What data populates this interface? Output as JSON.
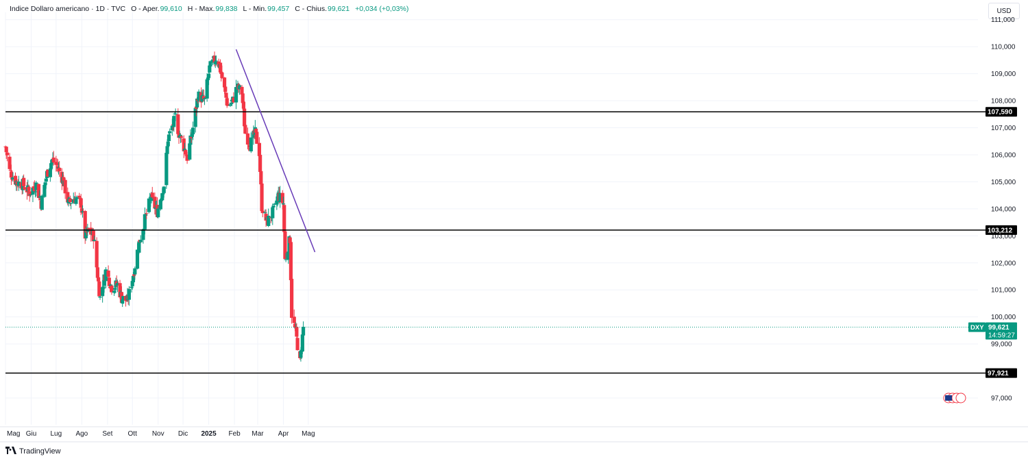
{
  "legend": {
    "title": "Indice Dollaro americano",
    "timeframe": "1D",
    "source": "TVC",
    "open_label": "O",
    "open_text": "Aper.",
    "open_value": "99,610",
    "high_label": "H",
    "high_text": "Max.",
    "high_value": "99,838",
    "low_label": "L",
    "low_text": "Min.",
    "low_value": "99,457",
    "close_label": "C",
    "close_text": "Chius.",
    "close_value": "99,621",
    "change": "+0,034 (+0,03%)"
  },
  "currency_button": "USD",
  "brand": {
    "name": "TradingView",
    "icon": "tradingview-logo-icon"
  },
  "colors": {
    "up": "#089981",
    "down": "#f23645",
    "trendline": "#673ab7",
    "level_line": "#000000",
    "grid": "#f0f3fa",
    "price_line": "#089981"
  },
  "chart_data": {
    "type": "candlestick",
    "symbol": "DXY",
    "last_price": "99,621",
    "countdown": "14:59:27",
    "ylim": [
      96.5,
      111.5
    ],
    "y_ticks": [
      "97,000",
      "99,000",
      "100,000",
      "101,000",
      "102,000",
      "103,000",
      "104,000",
      "105,000",
      "106,000",
      "107,000",
      "108,000",
      "109,000",
      "110,000",
      "111,000"
    ],
    "x_labels": [
      "Mag",
      "Giu",
      "Lug",
      "Ago",
      "Set",
      "Ott",
      "Nov",
      "Dic",
      "2025",
      "Feb",
      "Mar",
      "Apr",
      "Mag"
    ],
    "horizontal_levels": [
      {
        "value": 107.59,
        "label": "107,590"
      },
      {
        "value": 103.212,
        "label": "103,212"
      },
      {
        "value": 97.921,
        "label": "97,921"
      }
    ],
    "trendline": {
      "from": [
        "2025-02-03",
        109.9
      ],
      "to": [
        "2025-05-09",
        102.4
      ]
    },
    "anchors": [
      [
        "2024-05-01",
        106.3
      ],
      [
        "2024-05-06",
        105.4
      ],
      [
        "2024-05-14",
        105.0
      ],
      [
        "2024-05-22",
        104.9
      ],
      [
        "2024-05-30",
        104.6
      ],
      [
        "2024-06-07",
        104.9
      ],
      [
        "2024-06-13",
        104.2
      ],
      [
        "2024-06-20",
        105.3
      ],
      [
        "2024-06-26",
        105.8
      ],
      [
        "2024-07-02",
        105.6
      ],
      [
        "2024-07-09",
        105.1
      ],
      [
        "2024-07-16",
        104.2
      ],
      [
        "2024-07-23",
        104.4
      ],
      [
        "2024-07-31",
        104.2
      ],
      [
        "2024-08-05",
        103.0
      ],
      [
        "2024-08-09",
        103.2
      ],
      [
        "2024-08-15",
        103.0
      ],
      [
        "2024-08-23",
        100.7
      ],
      [
        "2024-08-30",
        101.7
      ],
      [
        "2024-09-06",
        101.1
      ],
      [
        "2024-09-13",
        101.2
      ],
      [
        "2024-09-18",
        100.7
      ],
      [
        "2024-09-25",
        100.6
      ],
      [
        "2024-10-01",
        101.4
      ],
      [
        "2024-10-08",
        102.6
      ],
      [
        "2024-10-16",
        103.6
      ],
      [
        "2024-10-23",
        104.4
      ],
      [
        "2024-10-31",
        103.9
      ],
      [
        "2024-11-08",
        104.9
      ],
      [
        "2024-11-13",
        106.6
      ],
      [
        "2024-11-22",
        107.4
      ],
      [
        "2024-11-26",
        106.8
      ],
      [
        "2024-12-02",
        106.3
      ],
      [
        "2024-12-06",
        105.9
      ],
      [
        "2024-12-12",
        106.8
      ],
      [
        "2024-12-19",
        108.2
      ],
      [
        "2024-12-27",
        108.0
      ],
      [
        "2025-01-02",
        109.2
      ],
      [
        "2025-01-10",
        109.6
      ],
      [
        "2025-01-14",
        109.3
      ],
      [
        "2025-01-20",
        108.4
      ],
      [
        "2025-01-24",
        107.8
      ],
      [
        "2025-01-30",
        108.0
      ],
      [
        "2025-02-04",
        108.5
      ],
      [
        "2025-02-10",
        108.3
      ],
      [
        "2025-02-14",
        106.8
      ],
      [
        "2025-02-20",
        106.4
      ],
      [
        "2025-02-26",
        106.8
      ],
      [
        "2025-03-03",
        106.1
      ],
      [
        "2025-03-06",
        104.1
      ],
      [
        "2025-03-12",
        103.5
      ],
      [
        "2025-03-20",
        103.9
      ],
      [
        "2025-03-26",
        104.5
      ],
      [
        "2025-04-01",
        104.2
      ],
      [
        "2025-04-03",
        102.1
      ],
      [
        "2025-04-09",
        102.9
      ],
      [
        "2025-04-11",
        100.1
      ],
      [
        "2025-04-16",
        99.4
      ],
      [
        "2025-04-21",
        98.3
      ],
      [
        "2025-04-25",
        99.6
      ]
    ]
  }
}
